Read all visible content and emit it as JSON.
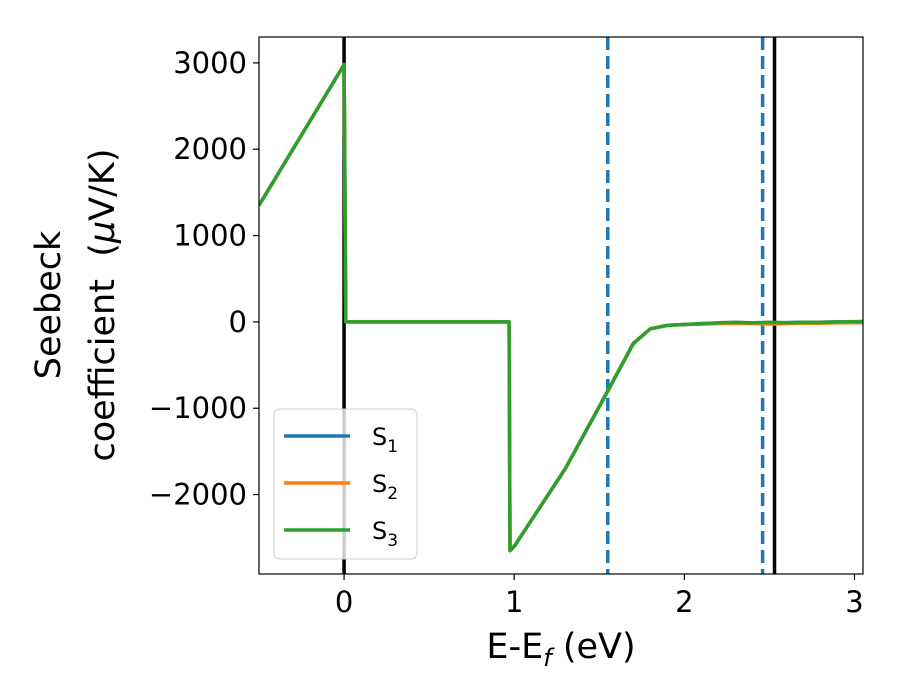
{
  "chart_data": {
    "type": "line",
    "title": "",
    "xlabel": "E-E",
    "xlabel_sub": "f",
    "xlabel_unit": " (eV)",
    "ylabel_line1": "Seebeck",
    "ylabel_line2": "coefficient  (",
    "ylabel_mu": "μ",
    "ylabel_unit": "V/K)",
    "xlim": [
      -0.5,
      3.05
    ],
    "ylim": [
      -2920,
      3300
    ],
    "xticks": [
      0,
      1,
      2,
      3
    ],
    "xtick_labels": [
      "0",
      "1",
      "2",
      "3"
    ],
    "yticks": [
      3000,
      2000,
      1000,
      0,
      -1000,
      -2000
    ],
    "ytick_labels": [
      "3000",
      "2000",
      "1000",
      "0",
      "−1000",
      "−2000"
    ],
    "grid": false,
    "legend_placement": "lower-left",
    "vertical_lines": [
      {
        "x": 0.0,
        "style": "solid",
        "color": "#000000"
      },
      {
        "x": 2.53,
        "style": "solid",
        "color": "#000000"
      },
      {
        "x": 1.55,
        "style": "dashed",
        "color": "#1f77b4"
      },
      {
        "x": 2.46,
        "style": "dashed",
        "color": "#1f77b4"
      }
    ],
    "series": [
      {
        "name": "S",
        "name_sub": "1",
        "color": "#1f77b4",
        "x": [
          -0.5,
          0.0,
          0.01,
          0.97,
          0.975,
          1.0,
          1.3,
          1.55,
          1.7,
          1.8,
          1.9,
          2.0,
          2.1,
          2.2,
          2.3,
          2.4,
          2.5,
          2.6,
          2.7,
          2.8,
          2.9,
          3.05
        ],
        "y": [
          1350,
          2980,
          0,
          0,
          -2650,
          -2600,
          -1700,
          -800,
          -250,
          -80,
          -40,
          -30,
          -20,
          -15,
          -10,
          -12,
          -10,
          -8,
          -5,
          -5,
          0,
          0
        ]
      },
      {
        "name": "S",
        "name_sub": "2",
        "color": "#ff7f0e",
        "x": [
          -0.5,
          0.0,
          0.01,
          0.97,
          0.975,
          1.0,
          1.3,
          1.55,
          1.7,
          1.8,
          1.9,
          2.0,
          2.1,
          2.2,
          2.3,
          2.4,
          2.5,
          2.6,
          2.7,
          2.8,
          2.9,
          3.05
        ],
        "y": [
          1350,
          2980,
          0,
          0,
          -2650,
          -2600,
          -1700,
          -800,
          -250,
          -80,
          -40,
          -30,
          -25,
          -20,
          -18,
          -20,
          -25,
          -20,
          -15,
          -15,
          -10,
          -10
        ]
      },
      {
        "name": "S",
        "name_sub": "3",
        "color": "#2ca02c",
        "x": [
          -0.5,
          0.0,
          0.01,
          0.97,
          0.975,
          1.0,
          1.3,
          1.55,
          1.7,
          1.8,
          1.9,
          2.0,
          2.1,
          2.2,
          2.3,
          2.4,
          2.5,
          2.6,
          2.7,
          2.8,
          2.9,
          3.05
        ],
        "y": [
          1350,
          2980,
          0,
          0,
          -2650,
          -2600,
          -1700,
          -800,
          -250,
          -80,
          -40,
          -30,
          -20,
          -10,
          -5,
          -10,
          -5,
          -10,
          -5,
          -5,
          0,
          5
        ]
      }
    ]
  }
}
